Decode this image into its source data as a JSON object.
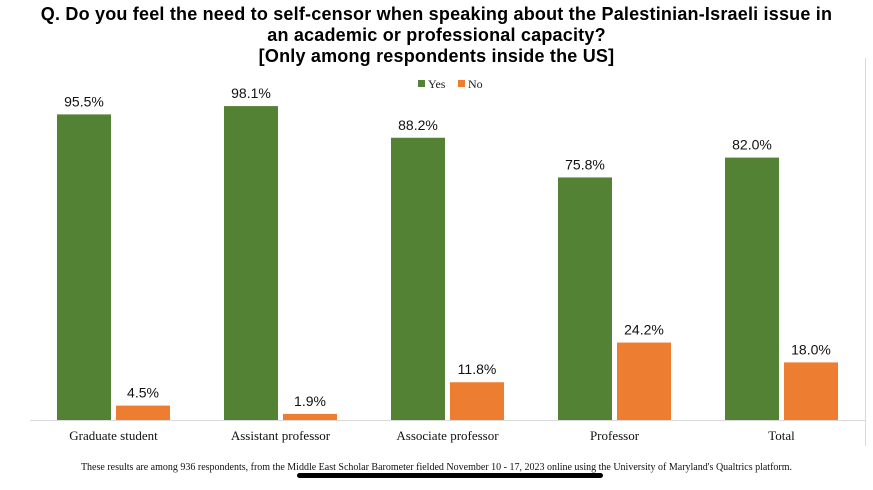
{
  "chart_data": {
    "type": "bar",
    "title": [
      "Q. Do you feel the need to self-censor when speaking about the Palestinian-Israeli issue in",
      "an academic or professional capacity?",
      "[Only among respondents inside the US]"
    ],
    "categories": [
      "Graduate student",
      "Assistant professor",
      "Associate professor",
      "Professor",
      "Total"
    ],
    "series": [
      {
        "name": "Yes",
        "color": "#548235",
        "values": [
          95.5,
          98.1,
          88.2,
          75.8,
          82.0
        ],
        "labels": [
          "95.5%",
          "98.1%",
          "88.2%",
          "75.8%",
          "82.0%"
        ]
      },
      {
        "name": "No",
        "color": "#ED7D31",
        "values": [
          4.5,
          1.9,
          11.8,
          24.2,
          18.0
        ],
        "labels": [
          "4.5%",
          "1.9%",
          "11.8%",
          "24.2%",
          "18.0%"
        ]
      }
    ],
    "ylim": [
      0,
      100
    ],
    "legend_position": "top-center",
    "grid": false,
    "footnote": "These results are among 936 respondents, from the Middle East Scholar Barometer fielded November 10 - 17, 2023 online using the University of Maryland's Qualtrics platform."
  }
}
